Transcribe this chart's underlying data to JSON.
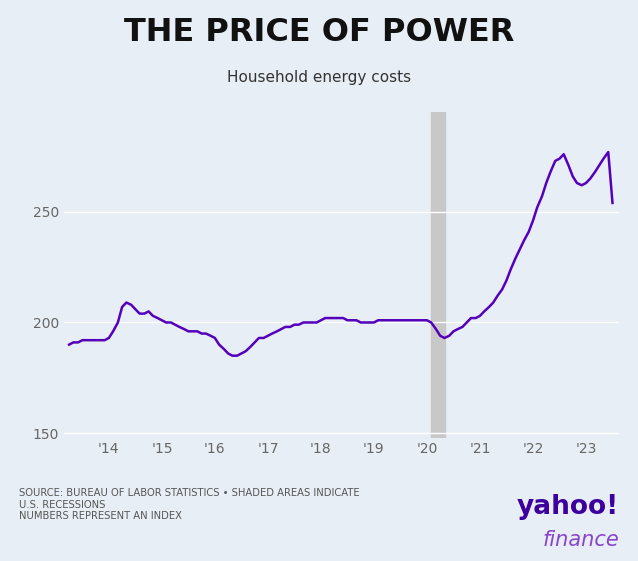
{
  "title": "THE PRICE OF POWER",
  "subtitle": "Household energy costs",
  "source_text": "SOURCE: BUREAU OF LABOR STATISTICS • SHADED AREAS INDICATE\nU.S. RECESSIONS\nNUMBERS REPRESENT AN INDEX",
  "background_color": "#e8eef5",
  "line_color": "#5500bb",
  "line_width": 1.8,
  "ylim": [
    148,
    295
  ],
  "yticks": [
    150,
    200,
    250
  ],
  "recession_shading": [
    {
      "start": 2020.083,
      "end": 2020.333
    }
  ],
  "x_tick_labels": [
    "'14",
    "'15",
    "'16",
    "'17",
    "'18",
    "'19",
    "'20",
    "'21",
    "'22",
    "'23"
  ],
  "x_tick_positions": [
    2014,
    2015,
    2016,
    2017,
    2018,
    2019,
    2020,
    2021,
    2022,
    2023
  ],
  "xlim": [
    2013.15,
    2023.62
  ],
  "data": {
    "x": [
      2013.25,
      2013.33,
      2013.42,
      2013.5,
      2013.58,
      2013.67,
      2013.75,
      2013.83,
      2013.92,
      2014.0,
      2014.08,
      2014.17,
      2014.25,
      2014.33,
      2014.42,
      2014.5,
      2014.58,
      2014.67,
      2014.75,
      2014.83,
      2014.92,
      2015.0,
      2015.08,
      2015.17,
      2015.25,
      2015.33,
      2015.42,
      2015.5,
      2015.58,
      2015.67,
      2015.75,
      2015.83,
      2015.92,
      2016.0,
      2016.08,
      2016.17,
      2016.25,
      2016.33,
      2016.42,
      2016.5,
      2016.58,
      2016.67,
      2016.75,
      2016.83,
      2016.92,
      2017.0,
      2017.08,
      2017.17,
      2017.25,
      2017.33,
      2017.42,
      2017.5,
      2017.58,
      2017.67,
      2017.75,
      2017.83,
      2017.92,
      2018.0,
      2018.08,
      2018.17,
      2018.25,
      2018.33,
      2018.42,
      2018.5,
      2018.58,
      2018.67,
      2018.75,
      2018.83,
      2018.92,
      2019.0,
      2019.08,
      2019.17,
      2019.25,
      2019.33,
      2019.42,
      2019.5,
      2019.58,
      2019.67,
      2019.75,
      2019.83,
      2019.92,
      2020.0,
      2020.08,
      2020.17,
      2020.25,
      2020.33,
      2020.42,
      2020.5,
      2020.58,
      2020.67,
      2020.75,
      2020.83,
      2020.92,
      2021.0,
      2021.08,
      2021.17,
      2021.25,
      2021.33,
      2021.42,
      2021.5,
      2021.58,
      2021.67,
      2021.75,
      2021.83,
      2021.92,
      2022.0,
      2022.08,
      2022.17,
      2022.25,
      2022.33,
      2022.42,
      2022.5,
      2022.58,
      2022.67,
      2022.75,
      2022.83,
      2022.92,
      2023.0,
      2023.08,
      2023.17,
      2023.25,
      2023.33,
      2023.42,
      2023.5
    ],
    "y": [
      190,
      191,
      191,
      192,
      192,
      192,
      192,
      192,
      192,
      193,
      196,
      200,
      207,
      209,
      208,
      206,
      204,
      204,
      205,
      203,
      202,
      201,
      200,
      200,
      199,
      198,
      197,
      196,
      196,
      196,
      195,
      195,
      194,
      193,
      190,
      188,
      186,
      185,
      185,
      186,
      187,
      189,
      191,
      193,
      193,
      194,
      195,
      196,
      197,
      198,
      198,
      199,
      199,
      200,
      200,
      200,
      200,
      201,
      202,
      202,
      202,
      202,
      202,
      201,
      201,
      201,
      200,
      200,
      200,
      200,
      201,
      201,
      201,
      201,
      201,
      201,
      201,
      201,
      201,
      201,
      201,
      201,
      200,
      197,
      194,
      193,
      194,
      196,
      197,
      198,
      200,
      202,
      202,
      203,
      205,
      207,
      209,
      212,
      215,
      219,
      224,
      229,
      233,
      237,
      241,
      246,
      252,
      257,
      263,
      268,
      273,
      274,
      276,
      271,
      266,
      263,
      262,
      263,
      265,
      268,
      271,
      274,
      277,
      254
    ]
  }
}
